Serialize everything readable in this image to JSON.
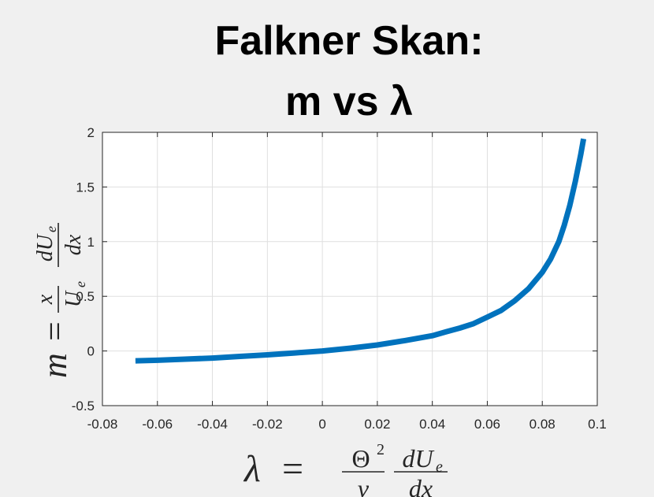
{
  "chart_data": {
    "type": "line",
    "title": [
      "Falkner Skan:",
      "m vs λ"
    ],
    "xlim": [
      -0.08,
      0.1
    ],
    "ylim": [
      -0.5,
      2
    ],
    "grid": true,
    "x_ticks": [
      -0.08,
      -0.06,
      -0.04,
      -0.02,
      0,
      0.02,
      0.04,
      0.06,
      0.08,
      0.1
    ],
    "x_tick_labels": [
      "-0.08",
      "-0.06",
      "-0.04",
      "-0.02",
      "0",
      "0.02",
      "0.04",
      "0.06",
      "0.08",
      "0.1"
    ],
    "y_ticks": [
      -0.5,
      0,
      0.5,
      1,
      1.5,
      2
    ],
    "y_tick_labels": [
      "-0.5",
      "0",
      "0.5",
      "1",
      "1.5",
      "2"
    ],
    "xlabel": "λ = (Θ²/ν) (dUₑ/dx)",
    "ylabel": "m = (x/Uₑ) (dUₑ/dx)",
    "series": [
      {
        "color": "#0072BD",
        "x": [
          -0.068,
          -0.06,
          -0.05,
          -0.04,
          -0.03,
          -0.02,
          -0.01,
          0,
          0.01,
          0.02,
          0.03,
          0.04,
          0.045,
          0.05,
          0.055,
          0.06,
          0.065,
          0.07,
          0.075,
          0.08,
          0.083,
          0.086,
          0.088,
          0.09,
          0.092,
          0.094,
          0.095
        ],
        "y": [
          -0.09,
          -0.085,
          -0.075,
          -0.065,
          -0.05,
          -0.035,
          -0.018,
          0,
          0.025,
          0.055,
          0.095,
          0.14,
          0.175,
          0.21,
          0.25,
          0.31,
          0.37,
          0.46,
          0.57,
          0.72,
          0.84,
          1.0,
          1.15,
          1.33,
          1.55,
          1.8,
          1.94
        ]
      }
    ]
  }
}
